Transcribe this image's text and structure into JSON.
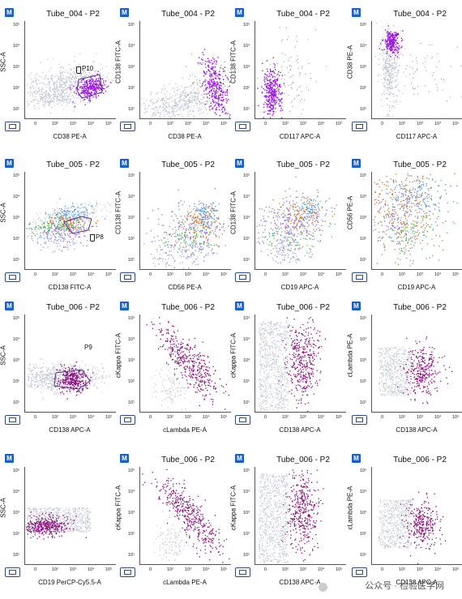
{
  "watermark": "公众号 · 检验医学网",
  "colors": {
    "gray": "#c5c8d6",
    "purple": "#9a14dd",
    "magenta": "#8b0e7c",
    "accent": "#1f5fbf"
  },
  "y_ticks": [
    "10⁵",
    "10⁴",
    "10³",
    "10²",
    "10¹"
  ],
  "x_ticks": [
    "0",
    "10²",
    "10³",
    "10⁴",
    "10⁵"
  ],
  "panels": [
    {
      "m": "M",
      "title": "Tube_004 - P2",
      "ylabel": "SSC-A",
      "xlabel": "CD38 PE-A",
      "gate_label": "P10",
      "gate": "tube"
    },
    {
      "m": "M",
      "title": "Tube_004 - P2",
      "ylabel": "CD138 FITC-A",
      "xlabel": "CD38 PE-A"
    },
    {
      "m": "M",
      "title": "Tube_004 - P2",
      "ylabel": "CD138 FITC-A",
      "xlabel": "CD117 APC-A"
    },
    {
      "m": "M",
      "title": "Tube_004 - P2",
      "ylabel": "CD38 PE-A",
      "xlabel": "CD117 APC-A"
    },
    {
      "m": "M",
      "title": "Tube_005 - P2",
      "ylabel": "SSC-A",
      "xlabel": "CD138 FITC-A",
      "gate_label": "P8",
      "gate": "tube"
    },
    {
      "m": "M",
      "title": "Tube_005 - P2",
      "ylabel": "CD138 FITC-A",
      "xlabel": "CD56 PE-A"
    },
    {
      "m": "M",
      "title": "Tube_005 - P2",
      "ylabel": "CD138 FITC-A",
      "xlabel": "CD19 APC-A"
    },
    {
      "m": "M",
      "title": "Tube_005 - P2",
      "ylabel": "CD56 PE-A",
      "xlabel": "CD19 APC-A"
    },
    {
      "m": "M",
      "title": "Tube_006 - P2",
      "ylabel": "SSC-A",
      "xlabel": "CD138 APC-A",
      "gate_label": "P9"
    },
    {
      "m": "M",
      "title": "Tube_006 - P2",
      "ylabel": "cKappa FITC-A",
      "xlabel": "cLambda PE-A"
    },
    {
      "m": "M",
      "title": "Tube_006 - P2",
      "ylabel": "cKappa FITC-A",
      "xlabel": "CD138 APC-A"
    },
    {
      "m": "M",
      "title": "Tube_006 - P2",
      "ylabel": "cLambda PE-A",
      "xlabel": "CD138 APC-A"
    },
    {
      "m": "M",
      "title": "",
      "ylabel": "SSC-A",
      "xlabel": "CD19 PerCP-Cy5.5-A"
    },
    {
      "m": "M",
      "title": "Tube_006 - P2",
      "ylabel": "cKappa FITC-A",
      "xlabel": "cLambda PE-A"
    },
    {
      "m": "M",
      "title": "Tube_006 - P2",
      "ylabel": "cKappa FITC-A",
      "xlabel": "CD138 APC-A"
    },
    {
      "m": "M",
      "title": "Tube_006 - P2",
      "ylabel": "cLambda PE-A",
      "xlabel": "CD138 APC-A"
    }
  ],
  "chart_data": {
    "type": "scatter",
    "layout": "4x4 grid of flow cytometry dot plots",
    "populations": [
      "gray background events",
      "purple gated plasma cells",
      "magenta gated plasma cells",
      "multicolor populations (Tube_005)"
    ]
  }
}
